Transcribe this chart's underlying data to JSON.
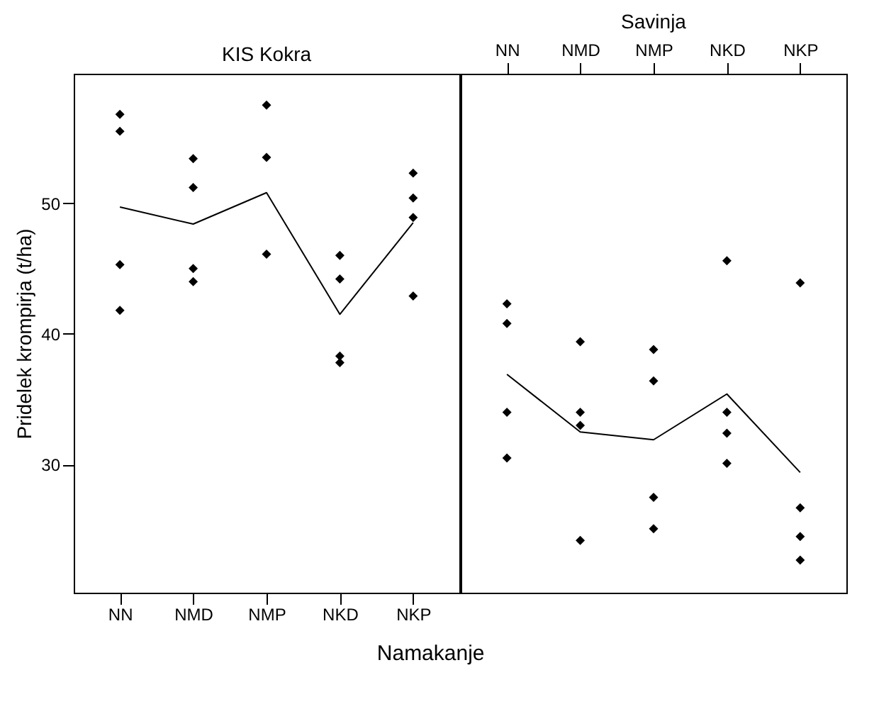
{
  "chart_data": [
    {
      "type": "scatter",
      "title": "KIS Kokra",
      "ylabel": "Pridelek krompirja (t/ha)",
      "xlabel": "Namakanje",
      "categories": [
        "NN",
        "NMD",
        "NMP",
        "NKD",
        "NKP"
      ],
      "ylim": [
        20.2,
        59.9
      ],
      "yticks": [
        30,
        40,
        50
      ],
      "grid": false,
      "series": [
        {
          "marker": "diamond",
          "color": "#000000",
          "x": [
            "NN",
            "NN",
            "NN",
            "NN",
            "NMD",
            "NMD",
            "NMD",
            "NMD",
            "NMP",
            "NMP",
            "NMP",
            "NKD",
            "NKD",
            "NKD",
            "NKD",
            "NKP",
            "NKP",
            "NKP",
            "NKP"
          ],
          "values": [
            56.8,
            55.5,
            45.3,
            41.8,
            53.4,
            51.2,
            45.0,
            44.0,
            57.5,
            53.5,
            46.1,
            46.0,
            44.2,
            38.3,
            37.8,
            52.3,
            50.4,
            48.9,
            42.9
          ]
        },
        {
          "type": "line",
          "color": "#000000",
          "values": [
            49.7,
            48.4,
            50.8,
            41.5,
            48.5
          ]
        }
      ]
    },
    {
      "type": "scatter",
      "title": "Savinja",
      "categories": [
        "NN",
        "NMD",
        "NMP",
        "NKD",
        "NKP"
      ],
      "ylim": [
        20.2,
        59.9
      ],
      "yticks": [
        30,
        40,
        50
      ],
      "grid": false,
      "tick_labels": "x",
      "series": [
        {
          "marker": "diamond",
          "color": "#000000",
          "x": [
            "NN",
            "NN",
            "NN",
            "NN",
            "NMD",
            "NMD",
            "NMD",
            "NMD",
            "NMP",
            "NMP",
            "NMP",
            "NMP",
            "NKD",
            "NKD",
            "NKD",
            "NKD",
            "NKP",
            "NKP",
            "NKP",
            "NKP"
          ],
          "values": [
            42.3,
            40.8,
            34.0,
            30.5,
            39.4,
            34.0,
            33.0,
            24.2,
            38.8,
            36.4,
            27.5,
            25.1,
            45.6,
            34.0,
            32.4,
            30.1,
            43.9,
            26.7,
            24.5,
            22.7
          ]
        },
        {
          "type": "line",
          "color": "#000000",
          "values": [
            36.9,
            32.5,
            31.9,
            35.4,
            29.4
          ]
        }
      ]
    }
  ]
}
